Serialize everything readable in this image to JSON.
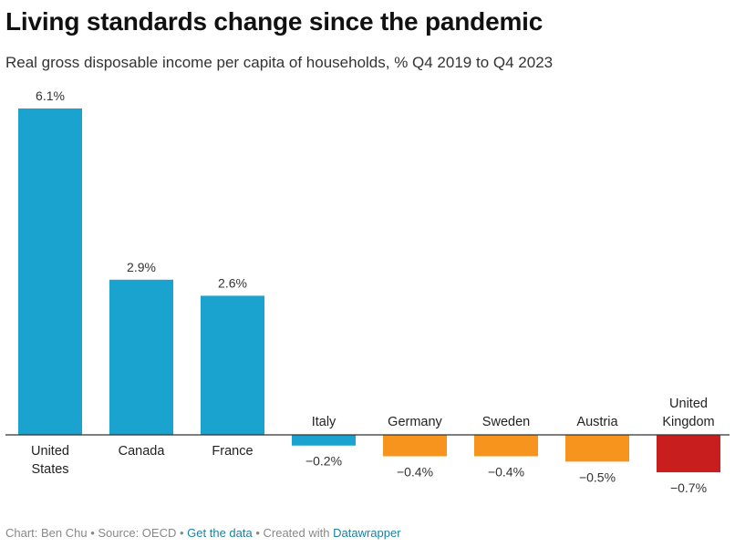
{
  "title": "Living standards change since the pandemic",
  "subtitle": "Real gross disposable income per capita of households, % Q4 2019 to Q4 2023",
  "chart_data": {
    "type": "bar",
    "title": "Living standards change since the pandemic",
    "subtitle": "Real gross disposable income per capita of households, % Q4 2019 to Q4 2023",
    "xlabel": "",
    "ylabel": "",
    "grid": false,
    "legend": "none",
    "ylim": [
      -0.7,
      6.1
    ],
    "categories": [
      [
        "United",
        "States"
      ],
      [
        "Canada"
      ],
      [
        "France"
      ],
      [
        "Italy"
      ],
      [
        "Germany"
      ],
      [
        "Sweden"
      ],
      [
        "Austria"
      ],
      [
        "United",
        "Kingdom"
      ]
    ],
    "values": [
      6.1,
      2.9,
      2.6,
      -0.2,
      -0.4,
      -0.4,
      -0.5,
      -0.7
    ],
    "value_labels": [
      "6.1%",
      "2.9%",
      "2.6%",
      "−0.2%",
      "−0.4%",
      "−0.4%",
      "−0.5%",
      "−0.7%"
    ],
    "colors": [
      "#1ba3d0",
      "#1ba3d0",
      "#1ba3d0",
      "#1ba3d0",
      "#f7941d",
      "#f7941d",
      "#f7941d",
      "#c81e1e"
    ]
  },
  "footer": {
    "chart_by": "Chart: Ben Chu",
    "source": "Source: OECD",
    "get_data": "Get the data",
    "created_with": "Created with",
    "datawrapper": "Datawrapper",
    "sep": " • "
  }
}
